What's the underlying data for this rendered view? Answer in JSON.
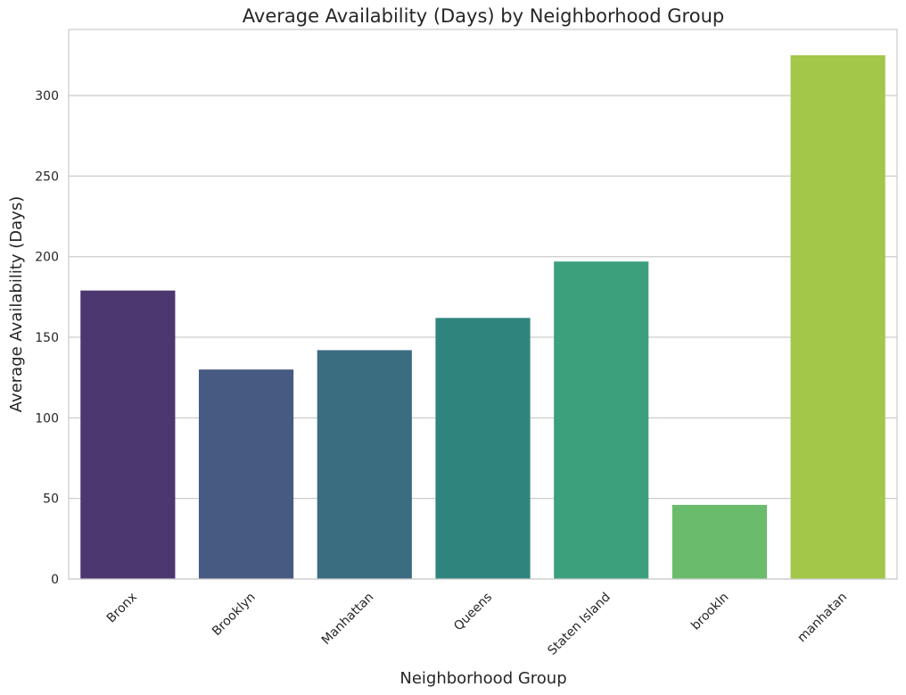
{
  "chart_data": {
    "type": "bar",
    "title": "Average Availability (Days) by Neighborhood Group",
    "xlabel": "Neighborhood Group",
    "ylabel": "Average Availability (Days)",
    "categories": [
      "Bronx",
      "Brooklyn",
      "Manhattan",
      "Queens",
      "Staten Island",
      "brookln",
      "manhatan"
    ],
    "values": [
      179,
      130,
      142,
      162,
      197,
      46,
      325
    ],
    "ylim": [
      0,
      341
    ],
    "yticks": [
      0,
      50,
      100,
      150,
      200,
      250,
      300
    ],
    "colors": [
      "#4c3771",
      "#465a82",
      "#3b6d81",
      "#30847e",
      "#3da07d",
      "#6abb6b",
      "#a2c749"
    ],
    "grid": true,
    "legend": "none"
  }
}
